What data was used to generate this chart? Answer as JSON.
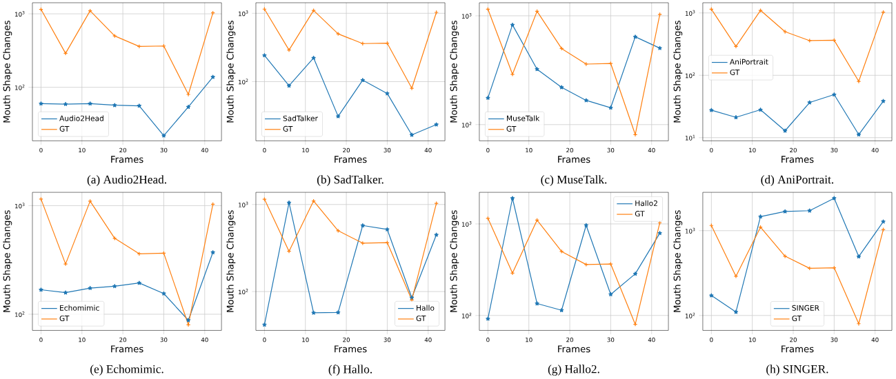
{
  "chart_data": [
    {
      "type": "line",
      "title": "(a) Audio2Head.",
      "xlabel": "Frames",
      "ylabel": "Mouth Shape Changes",
      "x": [
        0,
        6,
        12,
        18,
        24,
        30,
        36,
        42
      ],
      "log": "y",
      "xlim": [
        -2.1,
        44.1
      ],
      "xticks": [
        0,
        10,
        20,
        30,
        40
      ],
      "ylim": [
        18.7,
        1415
      ],
      "yticks": [
        {
          "value": 100,
          "label": "10$^{2}$"
        },
        {
          "value": 1000,
          "label": "10$^{3}$"
        }
      ],
      "grid": true,
      "legend": "bottom left",
      "series": [
        {
          "name": "Audio2Head",
          "color": "#1f77b4",
          "marker": "star",
          "values": [
            60,
            59,
            60,
            57,
            56,
            22,
            54,
            138
          ]
        },
        {
          "name": "GT",
          "color": "#ff7f0e",
          "marker": "cross",
          "values": [
            1150,
            290,
            1100,
            500,
            360,
            365,
            80,
            1030
          ]
        }
      ]
    },
    {
      "type": "line",
      "title": "(b) SadTalker.",
      "xlabel": "Frames",
      "ylabel": "Mouth Shape Changes",
      "x": [
        0,
        6,
        12,
        18,
        24,
        30,
        36,
        42
      ],
      "log": "y",
      "xlim": [
        -2.1,
        44.1
      ],
      "xticks": [
        0,
        10,
        20,
        30,
        40
      ],
      "ylim": [
        13.6,
        1427
      ],
      "yticks": [
        {
          "value": 100,
          "label": "10$^{2}$"
        },
        {
          "value": 1000,
          "label": "10$^{3}$"
        }
      ],
      "grid": true,
      "legend": "bottom left",
      "series": [
        {
          "name": "SadTalker",
          "color": "#1f77b4",
          "marker": "star",
          "values": [
            242,
            87,
            222,
            31,
            105,
            67,
            16.6,
            23.5
          ]
        },
        {
          "name": "GT",
          "color": "#ff7f0e",
          "marker": "cross",
          "values": [
            1150,
            290,
            1100,
            500,
            360,
            365,
            80,
            1030
          ]
        }
      ]
    },
    {
      "type": "line",
      "title": "(c) MuseTalk.",
      "xlabel": "Frames",
      "ylabel": "Mouth Shape Changes",
      "x": [
        0,
        6,
        12,
        18,
        24,
        30,
        36,
        42
      ],
      "log": "y",
      "xlim": [
        -2.1,
        44.1
      ],
      "xticks": [
        0,
        10,
        20,
        30,
        40
      ],
      "ylim": [
        71,
        1318
      ],
      "yticks": [
        {
          "value": 100,
          "label": "10$^{2}$"
        },
        {
          "value": 1000,
          "label": "10$^{3}$"
        }
      ],
      "grid": true,
      "legend": "bottom left",
      "series": [
        {
          "name": "MuseTalk",
          "color": "#1f77b4",
          "marker": "star",
          "values": [
            176,
            825,
            323,
            220,
            167,
            143,
            641,
            504
          ]
        },
        {
          "name": "GT",
          "color": "#ff7f0e",
          "marker": "cross",
          "values": [
            1150,
            290,
            1100,
            500,
            360,
            365,
            81,
            1030
          ]
        }
      ]
    },
    {
      "type": "line",
      "title": "(d) AniPortrait.",
      "xlabel": "Frames",
      "ylabel": "Mouth Shape Changes",
      "x": [
        0,
        6,
        12,
        18,
        24,
        30,
        36,
        42
      ],
      "log": "y",
      "xlim": [
        -2.1,
        44.1
      ],
      "xticks": [
        0,
        10,
        20,
        30,
        40
      ],
      "ylim": [
        8.9,
        1458
      ],
      "yticks": [
        {
          "value": 10,
          "label": "10$^{1}$"
        },
        {
          "value": 100,
          "label": "10$^{2}$"
        },
        {
          "value": 1000,
          "label": "10$^{3}$"
        }
      ],
      "grid": true,
      "legend": "left",
      "series": [
        {
          "name": "AniPortrait",
          "color": "#1f77b4",
          "marker": "star",
          "values": [
            27.6,
            21.2,
            28,
            12.9,
            36.6,
            49,
            11.2,
            38.5
          ]
        },
        {
          "name": "GT",
          "color": "#ff7f0e",
          "marker": "cross",
          "values": [
            1150,
            290,
            1100,
            500,
            360,
            365,
            80,
            1030
          ]
        }
      ]
    },
    {
      "type": "line",
      "title": "(e) Echomimic.",
      "xlabel": "Frames",
      "ylabel": "Mouth Shape Changes",
      "x": [
        0,
        6,
        12,
        18,
        24,
        30,
        36,
        42
      ],
      "log": "y",
      "xlim": [
        -2.1,
        44.1
      ],
      "xticks": [
        0,
        10,
        20,
        30,
        40
      ],
      "ylim": [
        71,
        1326
      ],
      "yticks": [
        {
          "value": 100,
          "label": "10$^{2}$"
        },
        {
          "value": 1000,
          "label": "10$^{3}$"
        }
      ],
      "grid": true,
      "legend": "bottom left",
      "series": [
        {
          "name": "Echomimic",
          "color": "#1f77b4",
          "marker": "star",
          "values": [
            168,
            158,
            174,
            181,
            194,
            155,
            88,
            371
          ]
        },
        {
          "name": "GT",
          "color": "#ff7f0e",
          "marker": "cross",
          "values": [
            1150,
            290,
            1100,
            500,
            360,
            365,
            80,
            1030
          ]
        }
      ]
    },
    {
      "type": "line",
      "title": "(f) Hallo.",
      "xlabel": "Frames",
      "ylabel": "Mouth Shape Changes",
      "x": [
        0,
        6,
        12,
        18,
        24,
        30,
        36,
        42
      ],
      "log": "y",
      "xlim": [
        -2.1,
        44.1
      ],
      "xticks": [
        0,
        10,
        20,
        30,
        40
      ],
      "ylim": [
        35.8,
        1380
      ],
      "yticks": [
        {
          "value": 100,
          "label": "10$^{2}$"
        },
        {
          "value": 1000,
          "label": "10$^{3}$"
        }
      ],
      "grid": true,
      "legend": "bottom right",
      "series": [
        {
          "name": "Hallo",
          "color": "#1f77b4",
          "marker": "star",
          "values": [
            41.6,
            1050,
            57,
            57.5,
            574,
            517,
            85,
            448
          ]
        },
        {
          "name": "GT",
          "color": "#ff7f0e",
          "marker": "cross",
          "values": [
            1150,
            290,
            1100,
            500,
            360,
            365,
            80,
            1030
          ]
        }
      ]
    },
    {
      "type": "line",
      "title": "(g) Hallo2.",
      "xlabel": "Frames",
      "ylabel": "Mouth Shape Changes",
      "x": [
        0,
        6,
        12,
        18,
        24,
        30,
        36,
        42
      ],
      "log": "y",
      "xlim": [
        -2.1,
        44.1
      ],
      "xticks": [
        0,
        10,
        20,
        30,
        40
      ],
      "ylim": [
        68.7,
        2213
      ],
      "yticks": [
        {
          "value": 100,
          "label": "10$^{2}$"
        },
        {
          "value": 1000,
          "label": "10$^{3}$"
        }
      ],
      "grid": true,
      "legend": "top right",
      "series": [
        {
          "name": "Hallo2",
          "color": "#1f77b4",
          "marker": "star",
          "values": [
            92,
            1905,
            135,
            114,
            965,
            170,
            285,
            792
          ]
        },
        {
          "name": "GT",
          "color": "#ff7f0e",
          "marker": "cross",
          "values": [
            1150,
            290,
            1100,
            500,
            360,
            365,
            80,
            1030
          ]
        }
      ]
    },
    {
      "type": "line",
      "title": "(h) SINGER.",
      "xlabel": "Frames",
      "ylabel": "Mouth Shape Changes",
      "x": [
        0,
        6,
        12,
        18,
        24,
        30,
        36,
        42
      ],
      "log": "y",
      "xlim": [
        -2.1,
        44.1
      ],
      "xticks": [
        0,
        10,
        20,
        30,
        40
      ],
      "ylim": [
        66.7,
        2832
      ],
      "yticks": [
        {
          "value": 100,
          "label": "10$^{2}$"
        },
        {
          "value": 1000,
          "label": "10$^{3}$"
        }
      ],
      "grid": true,
      "legend": "bottom",
      "series": [
        {
          "name": "SINGER",
          "color": "#1f77b4",
          "marker": "star",
          "values": [
            172,
            110,
            1466,
            1683,
            1720,
            2412,
            495,
            1277
          ]
        },
        {
          "name": "GT",
          "color": "#ff7f0e",
          "marker": "cross",
          "values": [
            1150,
            290,
            1100,
            500,
            360,
            365,
            80,
            1030
          ]
        }
      ]
    }
  ]
}
